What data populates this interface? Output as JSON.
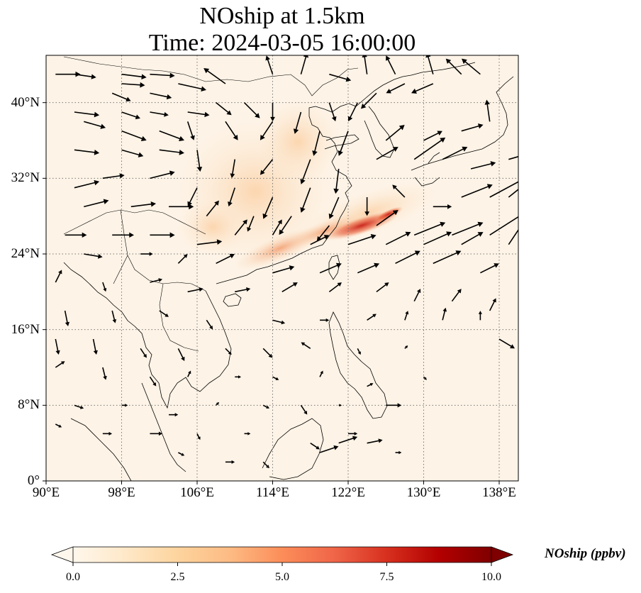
{
  "title": {
    "line1": "NOship at 1.5km",
    "line2": "Time: 2024-03-05 16:00:00"
  },
  "map": {
    "projection": "PlateCarree",
    "lon_range": [
      90,
      140
    ],
    "lat_range": [
      0,
      45
    ],
    "gridlines": "dotted",
    "lat_ticks": [
      "40°N",
      "32°N",
      "24°N",
      "16°N",
      "8°N",
      "0°"
    ],
    "lon_ticks": [
      "90°E",
      "98°E",
      "106°E",
      "114°E",
      "122°E",
      "130°E",
      "138°E"
    ],
    "colors": {
      "background": "#fdf3e6",
      "plume_light": "#fbd9b3",
      "plume_mid": "#f4a97a",
      "plume_high": "#d7301f",
      "coast": "#000000",
      "vector": "#000000"
    }
  },
  "colorbar": {
    "label": "NOship (ppbv)",
    "colormap": "OrRd",
    "extend": "both",
    "range": [
      0,
      10
    ],
    "tick_labels": [
      "0.0",
      "2.5",
      "5.0",
      "7.5",
      "10.0"
    ]
  },
  "chart_data": {
    "type": "heatmap",
    "variable": "NOship",
    "units": "ppbv",
    "level": "1.5km",
    "time": "2024-03-05 16:00:00",
    "hotspots": [
      {
        "lon": 124.5,
        "lat": 27.3,
        "value": 6.5
      },
      {
        "lon": 126.5,
        "lat": 28.0,
        "value": 5.5
      },
      {
        "lon": 122.0,
        "lat": 27.0,
        "value": 4.0
      },
      {
        "lon": 119.0,
        "lat": 26.0,
        "value": 3.0
      },
      {
        "lon": 113.0,
        "lat": 25.5,
        "value": 2.8
      },
      {
        "lon": 116.0,
        "lat": 36.0,
        "value": 1.8
      },
      {
        "lon": 110.0,
        "lat": 28.0,
        "value": 1.2
      }
    ],
    "wind_vectors": [
      [
        91,
        43,
        1.6,
        0.0
      ],
      [
        93,
        43,
        1.4,
        -0.2
      ],
      [
        98,
        43,
        1.6,
        -0.2
      ],
      [
        101,
        43,
        1.6,
        -0.1
      ],
      [
        104,
        42,
        1.8,
        -0.4
      ],
      [
        98,
        42,
        1.5,
        -0.1
      ],
      [
        101,
        41,
        1.4,
        -0.3
      ],
      [
        97,
        41,
        1.2,
        -0.5
      ],
      [
        109,
        42,
        -1.4,
        1.0
      ],
      [
        114,
        43,
        -0.4,
        1.2
      ],
      [
        117,
        43,
        0.4,
        1.4
      ],
      [
        120,
        43,
        1.4,
        -0.4
      ],
      [
        124,
        43,
        -0.2,
        1.4
      ],
      [
        127,
        43,
        -0.6,
        1.2
      ],
      [
        131,
        43,
        -0.4,
        1.4
      ],
      [
        134,
        43,
        -1.0,
        1.0
      ],
      [
        136,
        43,
        -1.2,
        1.0
      ],
      [
        93,
        39,
        1.6,
        -0.2
      ],
      [
        98,
        39,
        1.2,
        -0.4
      ],
      [
        101,
        39,
        1.2,
        -0.2
      ],
      [
        105,
        39,
        1.4,
        -0.2
      ],
      [
        108,
        40,
        1.0,
        -0.8
      ],
      [
        111,
        40,
        1.0,
        -1.0
      ],
      [
        114,
        40,
        0.0,
        -1.2
      ],
      [
        117,
        39,
        -0.4,
        -1.4
      ],
      [
        120,
        40,
        0.4,
        -1.2
      ],
      [
        123,
        40,
        -0.6,
        -1.2
      ],
      [
        125,
        41,
        -1.0,
        -1.0
      ],
      [
        128,
        42,
        -1.2,
        -0.6
      ],
      [
        131,
        42,
        -1.4,
        -0.6
      ],
      [
        94,
        38,
        1.4,
        -0.4
      ],
      [
        98,
        37,
        1.6,
        -0.6
      ],
      [
        102,
        37,
        1.6,
        -0.6
      ],
      [
        105,
        38,
        0.4,
        -1.2
      ],
      [
        109,
        38,
        0.8,
        -1.2
      ],
      [
        114,
        38,
        -0.8,
        -1.2
      ],
      [
        119,
        37,
        -0.4,
        -1.6
      ],
      [
        122,
        37,
        -0.6,
        -1.6
      ],
      [
        126,
        36,
        1.2,
        1.0
      ],
      [
        130,
        36,
        1.2,
        0.6
      ],
      [
        134,
        37,
        1.4,
        0.4
      ],
      [
        137,
        38,
        -0.2,
        1.4
      ],
      [
        93,
        35,
        1.6,
        -0.2
      ],
      [
        98,
        35,
        1.4,
        -0.4
      ],
      [
        102,
        35,
        1.6,
        -0.2
      ],
      [
        106,
        35,
        0.2,
        -1.4
      ],
      [
        110,
        34,
        -0.2,
        -1.2
      ],
      [
        114,
        34,
        -0.8,
        -1.0
      ],
      [
        118,
        34,
        -0.6,
        -1.6
      ],
      [
        121,
        33,
        -0.2,
        -1.6
      ],
      [
        125,
        34,
        1.4,
        0.8
      ],
      [
        129,
        34,
        2.0,
        1.4
      ],
      [
        132,
        34,
        1.6,
        0.8
      ],
      [
        135,
        33,
        1.6,
        0.4
      ],
      [
        139,
        34,
        1.4,
        0.4
      ],
      [
        93,
        31,
        1.6,
        0.4
      ],
      [
        96,
        32,
        1.4,
        0.2
      ],
      [
        101,
        32,
        1.6,
        0.4
      ],
      [
        106,
        31,
        -0.6,
        -1.2
      ],
      [
        110,
        31,
        -0.4,
        -1.2
      ],
      [
        114,
        30,
        -0.6,
        -1.4
      ],
      [
        118,
        31,
        -0.6,
        -1.6
      ],
      [
        121,
        30,
        -0.6,
        -1.4
      ],
      [
        124,
        30,
        0.0,
        -1.2
      ],
      [
        128,
        30,
        -0.8,
        0.8
      ],
      [
        131,
        29,
        1.2,
        0.0
      ],
      [
        134,
        30,
        2.0,
        0.8
      ],
      [
        137,
        30,
        2.6,
        1.4
      ],
      [
        139,
        30,
        2.0,
        1.6
      ],
      [
        94,
        29,
        1.6,
        0.4
      ],
      [
        99,
        29,
        1.6,
        0.2
      ],
      [
        103,
        29,
        1.6,
        0.0
      ],
      [
        107,
        28,
        0.8,
        1.0
      ],
      [
        112,
        28,
        -0.4,
        -1.0
      ],
      [
        116,
        28,
        -0.8,
        -1.2
      ],
      [
        120,
        27,
        -0.8,
        -1.0
      ],
      [
        125,
        27,
        1.4,
        1.0
      ],
      [
        129,
        26,
        2.0,
        0.8
      ],
      [
        133,
        26,
        2.0,
        0.8
      ],
      [
        137,
        26,
        2.2,
        1.4
      ],
      [
        139,
        25,
        1.2,
        1.8
      ],
      [
        92,
        26,
        1.4,
        0.0
      ],
      [
        97,
        26,
        1.4,
        0.0
      ],
      [
        101,
        26,
        1.6,
        0.0
      ],
      [
        106,
        25,
        1.6,
        0.2
      ],
      [
        110,
        26,
        0.8,
        1.0
      ],
      [
        114,
        26,
        0.6,
        1.0
      ],
      [
        118,
        25,
        1.2,
        0.6
      ],
      [
        122,
        25,
        1.8,
        0.6
      ],
      [
        126,
        25,
        1.6,
        0.8
      ],
      [
        130,
        25,
        1.8,
        0.8
      ],
      [
        134,
        25,
        1.4,
        0.8
      ],
      [
        94,
        24,
        1.2,
        -0.2
      ],
      [
        100,
        24,
        0.8,
        0.0
      ],
      [
        104,
        23,
        0.6,
        0.6
      ],
      [
        108,
        23,
        1.2,
        0.6
      ],
      [
        114,
        22,
        1.4,
        0.4
      ],
      [
        119,
        22,
        1.4,
        0.6
      ],
      [
        123,
        22,
        1.4,
        0.6
      ],
      [
        127,
        23,
        1.6,
        0.8
      ],
      [
        131,
        23,
        1.8,
        0.8
      ],
      [
        136,
        22,
        1.2,
        0.6
      ],
      [
        91,
        21,
        0.4,
        0.8
      ],
      [
        96,
        21,
        0.2,
        -0.6
      ],
      [
        101,
        21,
        0.8,
        0.2
      ],
      [
        105,
        20,
        1.0,
        0.2
      ],
      [
        110,
        20,
        1.0,
        0.2
      ],
      [
        115,
        20,
        1.0,
        0.6
      ],
      [
        120,
        20,
        0.8,
        0.6
      ],
      [
        125,
        20,
        0.8,
        0.6
      ],
      [
        129,
        19,
        0.4,
        0.8
      ],
      [
        133,
        19,
        0.6,
        0.8
      ],
      [
        137,
        18,
        0.4,
        0.8
      ],
      [
        92,
        18,
        0.2,
        -1.0
      ],
      [
        97,
        18,
        0.2,
        -0.8
      ],
      [
        102,
        18,
        0.6,
        -0.4
      ],
      [
        107,
        17,
        0.4,
        -0.6
      ],
      [
        114,
        17,
        0.8,
        -0.2
      ],
      [
        119,
        17,
        0.6,
        0.0
      ],
      [
        124,
        17,
        0.6,
        0.4
      ],
      [
        128,
        17,
        0.2,
        0.6
      ],
      [
        132,
        17,
        0.2,
        0.8
      ],
      [
        136,
        17,
        0.0,
        0.6
      ],
      [
        91,
        15,
        0.2,
        -1.0
      ],
      [
        95,
        15,
        0.2,
        -1.0
      ],
      [
        100,
        14,
        0.4,
        -0.6
      ],
      [
        104,
        14,
        0.4,
        -0.8
      ],
      [
        109,
        14,
        0.4,
        -0.4
      ],
      [
        113,
        14,
        0.6,
        -0.6
      ],
      [
        118,
        14,
        -0.6,
        0.4
      ],
      [
        123,
        14,
        0.2,
        -0.4
      ],
      [
        128,
        14,
        0.2,
        0.2
      ],
      [
        138,
        15,
        1.0,
        -0.6
      ],
      [
        91,
        12,
        0.6,
        0.4
      ],
      [
        96,
        12,
        0.2,
        -0.8
      ],
      [
        101,
        11,
        0.4,
        -0.6
      ],
      [
        105,
        11,
        0.2,
        0.4
      ],
      [
        110,
        11,
        0.4,
        0.0
      ],
      [
        114,
        11,
        0.4,
        -0.2
      ],
      [
        119,
        11,
        0.2,
        0.4
      ],
      [
        124,
        10,
        0.4,
        0.2
      ],
      [
        130,
        11,
        0.2,
        -0.2
      ],
      [
        93,
        8,
        0.6,
        -0.2
      ],
      [
        98,
        8,
        0.4,
        0.0
      ],
      [
        103,
        7,
        0.6,
        0.0
      ],
      [
        108,
        8,
        0.2,
        0.2
      ],
      [
        113,
        8,
        0.4,
        -0.2
      ],
      [
        117,
        8,
        0.4,
        -0.6
      ],
      [
        121,
        8,
        0.2,
        0.0
      ],
      [
        126,
        8,
        1.0,
        0.0
      ],
      [
        91,
        6,
        0.4,
        -0.2
      ],
      [
        96,
        5,
        0.6,
        0.0
      ],
      [
        101,
        5,
        0.8,
        0.0
      ],
      [
        106,
        5,
        0.2,
        -0.4
      ],
      [
        111,
        5,
        0.4,
        0.0
      ],
      [
        118,
        4,
        0.6,
        -0.4
      ],
      [
        121,
        4,
        1.2,
        0.4
      ],
      [
        124,
        4,
        1.0,
        0.2
      ],
      [
        113,
        2,
        0.4,
        -0.4
      ],
      [
        119,
        3,
        1.2,
        0.4
      ],
      [
        122,
        5,
        0.6,
        0.0
      ],
      [
        127,
        3,
        0.4,
        0.0
      ],
      [
        104,
        3,
        0.4,
        -0.2
      ],
      [
        109,
        2,
        0.6,
        0.0
      ]
    ]
  }
}
